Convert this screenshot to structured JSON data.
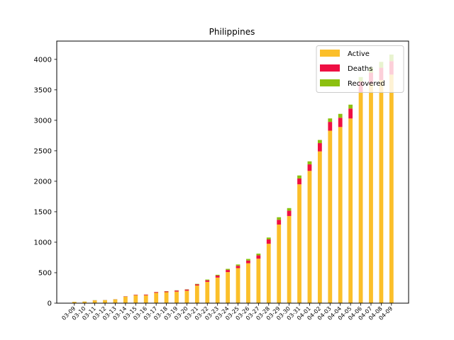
{
  "chart_data": {
    "type": "bar",
    "title": "Philippines",
    "xlabel": "",
    "ylabel": "",
    "ylim": [
      0,
      4300
    ],
    "yticks": [
      0,
      500,
      1000,
      1500,
      2000,
      2500,
      3000,
      3500,
      4000
    ],
    "stacked": true,
    "legend_position": "top-right",
    "categories": [
      "03-09",
      "03-10",
      "03-11",
      "03-12",
      "03-13",
      "03-14",
      "03-15",
      "03-16",
      "03-17",
      "03-18",
      "03-19",
      "03-20",
      "03-21",
      "03-22",
      "03-23",
      "03-24",
      "03-25",
      "03-26",
      "03-27",
      "03-28",
      "03-29",
      "03-30",
      "03-31",
      "04-01",
      "04-02",
      "04-03",
      "04-04",
      "04-05",
      "04-06",
      "04-07",
      "04-08",
      "04-09"
    ],
    "series": [
      {
        "name": "Active",
        "color": "#fbbf2a",
        "values": [
          20,
          24,
          45,
          48,
          61,
          105,
          130,
          130,
          170,
          180,
          190,
          205,
          290,
          350,
          420,
          510,
          575,
          655,
          730,
          975,
          1290,
          1430,
          1950,
          2170,
          2490,
          2830,
          2890,
          3030,
          3460,
          3600,
          3660,
          3750
        ]
      },
      {
        "name": "Deaths",
        "color": "#ee0f43",
        "values": [
          1,
          1,
          2,
          2,
          2,
          5,
          8,
          10,
          12,
          14,
          17,
          19,
          19,
          25,
          33,
          35,
          38,
          45,
          54,
          71,
          78,
          88,
          96,
          107,
          136,
          144,
          152,
          163,
          177,
          182,
          203,
          221
        ]
      },
      {
        "name": "Recovered",
        "color": "#8cc010",
        "values": [
          2,
          2,
          2,
          2,
          2,
          2,
          2,
          2,
          2,
          4,
          4,
          4,
          8,
          13,
          13,
          18,
          22,
          26,
          29,
          31,
          42,
          42,
          49,
          50,
          52,
          57,
          64,
          64,
          73,
          84,
          96,
          108
        ]
      }
    ]
  }
}
